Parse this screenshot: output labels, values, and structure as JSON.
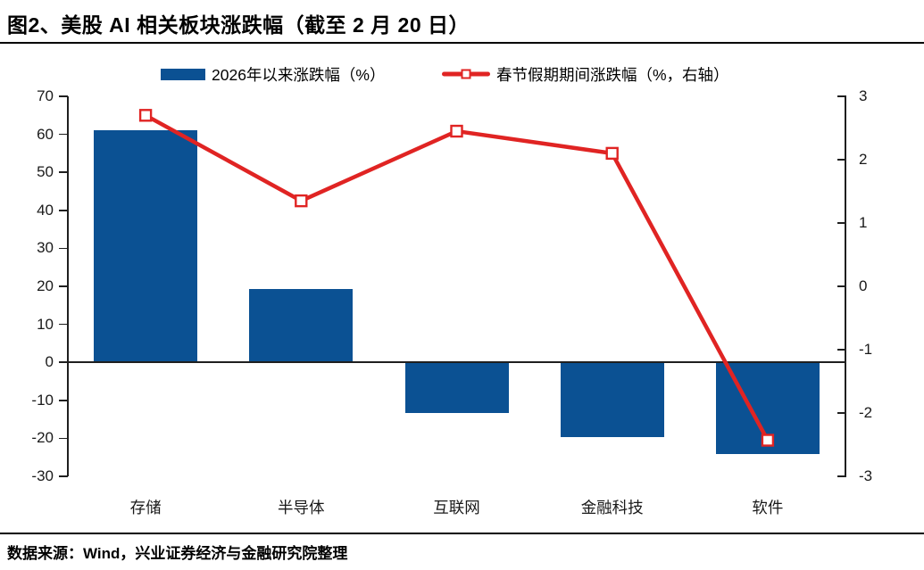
{
  "header": {
    "title": "图2、美股 AI 相关板块涨跌幅（截至 2 月 20 日）"
  },
  "footer": {
    "source": "数据来源：Wind，兴业证券经济与金融研究院整理"
  },
  "chart_data": {
    "type": "combo-bar-line",
    "title": "图2、美股 AI 相关板块涨跌幅（截至 2 月 20 日）",
    "categories": [
      "存储",
      "半导体",
      "互联网",
      "金融科技",
      "软件"
    ],
    "category_slugs": [
      "storage",
      "semiconductor",
      "internet",
      "fintech",
      "software"
    ],
    "series": [
      {
        "name": "2026年以来涨跌幅（%）",
        "type": "bar",
        "axis": "left",
        "color": "#0B5193",
        "values": [
          61,
          19.3,
          -13.4,
          -19.6,
          -24.2
        ]
      },
      {
        "name": "春节假期期间涨跌幅（%，右轴）",
        "type": "line",
        "axis": "right",
        "color": "#E02423",
        "marker": "open-square",
        "marker_fill": "#FFFFFF",
        "values": [
          2.7,
          1.35,
          2.45,
          2.1,
          -2.43
        ]
      }
    ],
    "left_axis": {
      "min": -30,
      "max": 70,
      "step": 10,
      "ticks": [
        70,
        60,
        50,
        40,
        30,
        20,
        10,
        0,
        -10,
        -20,
        -30
      ]
    },
    "right_axis": {
      "min": -3,
      "max": 3,
      "step": 1,
      "ticks": [
        3,
        2,
        1,
        0,
        -1,
        -2,
        -3
      ]
    },
    "grid": false,
    "legend_position": "top",
    "axis_color": "#1F1F1F"
  }
}
